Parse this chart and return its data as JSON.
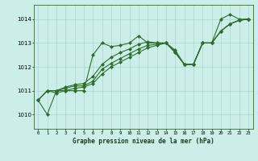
{
  "xlabel": "Graphe pression niveau de la mer (hPa)",
  "background_color": "#cceee8",
  "line_color": "#2d6e2d",
  "grid_color": "#aad4cc",
  "xlim": [
    -0.5,
    23.5
  ],
  "ylim": [
    1009.4,
    1014.6
  ],
  "yticks": [
    1010,
    1011,
    1012,
    1013,
    1014
  ],
  "xticks": [
    0,
    1,
    2,
    3,
    4,
    5,
    6,
    7,
    8,
    9,
    10,
    11,
    12,
    13,
    14,
    15,
    16,
    17,
    18,
    19,
    20,
    21,
    22,
    23
  ],
  "series": [
    [
      1010.6,
      1010.0,
      1011.0,
      1011.0,
      1011.0,
      1011.0,
      1012.5,
      1013.0,
      1012.85,
      1012.9,
      1013.0,
      1013.3,
      1013.0,
      1013.0,
      1013.0,
      1012.7,
      1012.1,
      1012.1,
      1013.0,
      1013.0,
      1014.0,
      1014.2,
      1014.0,
      1014.0
    ],
    [
      1010.6,
      1011.0,
      1010.9,
      1011.0,
      1011.1,
      1011.15,
      1011.3,
      1011.7,
      1012.0,
      1012.2,
      1012.4,
      1012.6,
      1012.8,
      1012.9,
      1013.0,
      1012.65,
      1012.1,
      1012.1,
      1013.0,
      1013.0,
      1013.5,
      1013.8,
      1013.95,
      1014.0
    ],
    [
      1010.6,
      1011.0,
      1011.0,
      1011.1,
      1011.2,
      1011.2,
      1011.4,
      1011.9,
      1012.15,
      1012.35,
      1012.55,
      1012.75,
      1012.9,
      1012.95,
      1013.0,
      1012.6,
      1012.1,
      1012.1,
      1013.0,
      1013.0,
      1013.5,
      1013.8,
      1013.95,
      1014.0
    ],
    [
      1010.6,
      1011.0,
      1011.0,
      1011.15,
      1011.25,
      1011.3,
      1011.6,
      1012.1,
      1012.4,
      1012.6,
      1012.75,
      1012.95,
      1013.05,
      1013.0,
      1013.0,
      1012.6,
      1012.1,
      1012.1,
      1013.0,
      1013.0,
      1013.5,
      1013.8,
      1013.95,
      1014.0
    ]
  ]
}
